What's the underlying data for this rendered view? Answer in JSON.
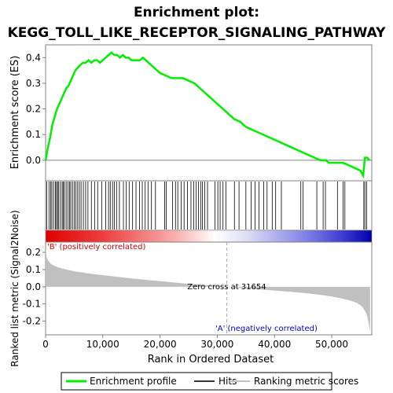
{
  "chart_data": {
    "type": "line",
    "title_line1": "Enrichment plot:",
    "title_line2": "KEGG_TOLL_LIKE_RECEPTOR_SIGNALING_PATHWAY",
    "es_panel": {
      "ylabel": "Enrichment score (ES)",
      "ylim": [
        -0.08,
        0.45
      ],
      "yticks": [
        "0.0",
        "0.1",
        "0.2",
        "0.3",
        "0.4"
      ],
      "ytick_values": [
        0.0,
        0.1,
        0.2,
        0.3,
        0.4
      ],
      "line_color": "#00ee00",
      "series": {
        "name": "Enrichment profile",
        "x": [
          0,
          400,
          800,
          1200,
          1600,
          2000,
          2400,
          2800,
          3200,
          3600,
          4000,
          4400,
          4800,
          5200,
          5600,
          6000,
          6500,
          7000,
          7500,
          8000,
          8500,
          9000,
          9500,
          10000,
          10500,
          11000,
          11500,
          12000,
          12500,
          13000,
          13500,
          14000,
          14500,
          15000,
          15500,
          16000,
          16500,
          17000,
          18000,
          19000,
          20000,
          21000,
          22000,
          23000,
          24000,
          25000,
          26000,
          27000,
          28000,
          29000,
          30000,
          31000,
          32000,
          33000,
          34000,
          35000,
          36000,
          37000,
          38000,
          39000,
          40000,
          41000,
          42000,
          43000,
          44000,
          45000,
          46000,
          47000,
          48000,
          48500,
          49000,
          49500,
          50000,
          51000,
          52000,
          53000,
          54000,
          55000,
          55500,
          55800,
          56200,
          56600
        ],
        "y": [
          0.0,
          0.05,
          0.09,
          0.14,
          0.17,
          0.2,
          0.22,
          0.24,
          0.26,
          0.28,
          0.29,
          0.31,
          0.33,
          0.35,
          0.36,
          0.37,
          0.38,
          0.38,
          0.39,
          0.38,
          0.39,
          0.39,
          0.38,
          0.39,
          0.4,
          0.41,
          0.42,
          0.41,
          0.41,
          0.4,
          0.41,
          0.4,
          0.4,
          0.39,
          0.39,
          0.39,
          0.39,
          0.4,
          0.38,
          0.36,
          0.34,
          0.33,
          0.32,
          0.32,
          0.32,
          0.31,
          0.3,
          0.28,
          0.26,
          0.24,
          0.22,
          0.2,
          0.18,
          0.16,
          0.15,
          0.13,
          0.12,
          0.11,
          0.1,
          0.09,
          0.08,
          0.07,
          0.06,
          0.05,
          0.04,
          0.03,
          0.02,
          0.01,
          0.0,
          0.0,
          0.0,
          -0.01,
          -0.01,
          -0.01,
          -0.01,
          -0.02,
          -0.03,
          -0.04,
          -0.06,
          0.01,
          0.01,
          0.0
        ]
      }
    },
    "hits": {
      "name": "Hits",
      "positions": [
        200,
        600,
        900,
        1100,
        1400,
        1700,
        1900,
        2100,
        2300,
        2600,
        2900,
        3100,
        3300,
        3600,
        3900,
        4200,
        4400,
        4700,
        5000,
        5300,
        5600,
        5900,
        6200,
        6600,
        7000,
        7400,
        8000,
        8600,
        9100,
        9800,
        10500,
        11000,
        11300,
        11700,
        12000,
        12400,
        12900,
        13600,
        14100,
        14600,
        15200,
        15800,
        16400,
        16900,
        17400,
        17900,
        18500,
        19200,
        20800,
        21100,
        22200,
        22700,
        23100,
        23700,
        24200,
        24800,
        25400,
        25900,
        26300,
        26700,
        27100,
        27400,
        27800,
        28300,
        29600,
        30100,
        30500,
        31000,
        31500,
        33000,
        33800,
        35000,
        35900,
        36600,
        37300,
        38100,
        38700,
        39600,
        40200,
        41200,
        44600,
        45000,
        47400,
        48500,
        48900,
        51000,
        52000,
        52300,
        55600,
        55800,
        56100
      ]
    },
    "rank_panel": {
      "ylabel": "Ranked list metric (Signal2Noise)",
      "xlabel": "Rank in Ordered Dataset",
      "ylim": [
        -0.28,
        0.26
      ],
      "yticks": [
        "-0.2",
        "-0.1",
        "0.0",
        "0.1",
        "0.2"
      ],
      "ytick_values": [
        -0.2,
        -0.1,
        0.0,
        0.1,
        0.2
      ],
      "xticks": [
        "0",
        "10,000",
        "20,000",
        "30,000",
        "40,000",
        "50,000"
      ],
      "xtick_values": [
        0,
        10000,
        20000,
        30000,
        40000,
        50000
      ],
      "xlim": [
        0,
        57000
      ],
      "fill_color": "#c0c0c0",
      "series": {
        "name": "Ranking metric scores",
        "x": [
          0,
          200,
          500,
          1000,
          2000,
          3000,
          5000,
          8000,
          12000,
          16000,
          20000,
          24000,
          28000,
          31654,
          35000,
          40000,
          45000,
          48000,
          50000,
          52000,
          53500,
          54500,
          55300,
          55800,
          56200,
          56500,
          56700
        ],
        "y": [
          0.22,
          0.17,
          0.15,
          0.13,
          0.115,
          0.105,
          0.09,
          0.075,
          0.06,
          0.045,
          0.033,
          0.02,
          0.01,
          0.0,
          -0.01,
          -0.022,
          -0.036,
          -0.047,
          -0.057,
          -0.07,
          -0.083,
          -0.095,
          -0.115,
          -0.14,
          -0.17,
          -0.22,
          -0.26
        ]
      }
    },
    "annotations": {
      "zero_cross": "Zero cross at 31654",
      "pos_label": "'B' (positively correlated)",
      "neg_label": "'A' (negatively correlated)",
      "zero_cross_rank": 31654,
      "pos_color": "#cc0000",
      "neg_color": "#0000cc"
    },
    "legend": {
      "items": [
        "Enrichment profile",
        "Hits",
        "Ranking metric scores"
      ]
    }
  }
}
